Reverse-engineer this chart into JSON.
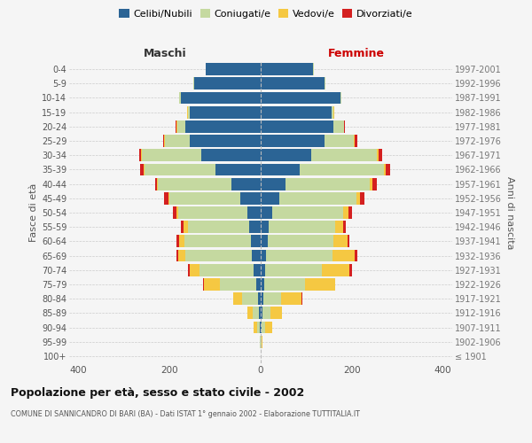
{
  "age_groups": [
    "100+",
    "95-99",
    "90-94",
    "85-89",
    "80-84",
    "75-79",
    "70-74",
    "65-69",
    "60-64",
    "55-59",
    "50-54",
    "45-49",
    "40-44",
    "35-39",
    "30-34",
    "25-29",
    "20-24",
    "15-19",
    "10-14",
    "5-9",
    "0-4"
  ],
  "birth_years": [
    "≤ 1901",
    "1902-1906",
    "1907-1911",
    "1912-1916",
    "1917-1921",
    "1922-1926",
    "1927-1931",
    "1932-1936",
    "1937-1941",
    "1942-1946",
    "1947-1951",
    "1952-1956",
    "1957-1961",
    "1962-1966",
    "1967-1971",
    "1972-1976",
    "1977-1981",
    "1982-1986",
    "1987-1991",
    "1992-1996",
    "1997-2001"
  ],
  "maschi": {
    "celibi": [
      0,
      0,
      2,
      3,
      5,
      10,
      15,
      20,
      22,
      25,
      30,
      45,
      65,
      100,
      130,
      155,
      165,
      155,
      175,
      145,
      120
    ],
    "coniugati": [
      0,
      1,
      5,
      15,
      35,
      80,
      120,
      145,
      145,
      135,
      150,
      155,
      160,
      155,
      130,
      55,
      18,
      5,
      3,
      2,
      1
    ],
    "vedovi": [
      0,
      1,
      8,
      12,
      20,
      35,
      20,
      15,
      12,
      10,
      5,
      3,
      3,
      2,
      2,
      2,
      2,
      1,
      0,
      0,
      0
    ],
    "divorziati": [
      0,
      0,
      0,
      0,
      1,
      1,
      5,
      5,
      5,
      5,
      8,
      8,
      4,
      8,
      4,
      2,
      1,
      0,
      0,
      0,
      0
    ]
  },
  "femmine": {
    "nubili": [
      0,
      0,
      2,
      3,
      5,
      8,
      10,
      12,
      15,
      18,
      25,
      40,
      55,
      85,
      110,
      140,
      160,
      155,
      175,
      140,
      115
    ],
    "coniugate": [
      0,
      1,
      8,
      18,
      40,
      90,
      125,
      145,
      145,
      145,
      155,
      170,
      185,
      185,
      145,
      65,
      22,
      5,
      2,
      2,
      1
    ],
    "vedove": [
      0,
      2,
      15,
      25,
      45,
      65,
      60,
      50,
      30,
      18,
      12,
      8,
      5,
      4,
      3,
      2,
      1,
      1,
      0,
      0,
      0
    ],
    "divorziate": [
      0,
      0,
      0,
      0,
      1,
      1,
      5,
      5,
      5,
      5,
      8,
      10,
      10,
      10,
      8,
      4,
      2,
      1,
      0,
      0,
      0
    ]
  },
  "colors": {
    "celibi": "#2b6495",
    "coniugati": "#c5d9a0",
    "vedovi": "#f5c842",
    "divorziati": "#d42020"
  },
  "title": "Popolazione per età, sesso e stato civile - 2002",
  "subtitle": "COMUNE DI SANNICANDRO DI BARI (BA) - Dati ISTAT 1° gennaio 2002 - Elaborazione TUTTITALIA.IT",
  "xlabel_left": "Maschi",
  "xlabel_right": "Femmine",
  "ylabel_left": "Fasce di età",
  "ylabel_right": "Anni di nascita",
  "xlim": 420,
  "legend_labels": [
    "Celibi/Nubili",
    "Coniugati/e",
    "Vedovi/e",
    "Divorziati/e"
  ],
  "background_color": "#f5f5f5"
}
